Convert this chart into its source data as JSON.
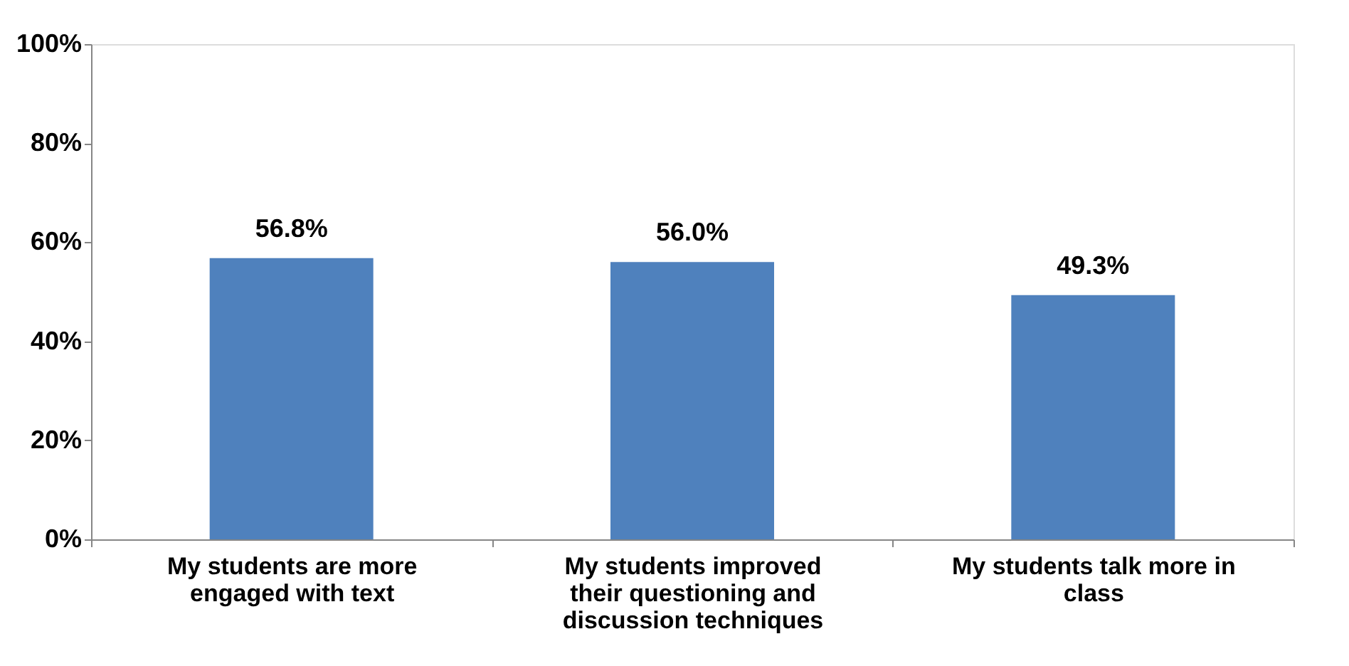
{
  "chart_data": {
    "type": "bar",
    "categories": [
      "My students are more engaged with text",
      "My students improved their questioning and discussion techniques",
      "My students talk more in class"
    ],
    "values": [
      56.8,
      56.0,
      49.3
    ],
    "value_labels": [
      "56.8%",
      "56.0%",
      "49.3%"
    ],
    "color": "#4f81bd",
    "ylim": [
      0,
      100
    ],
    "yticks": [
      {
        "value": 0,
        "label": "0%"
      },
      {
        "value": 20,
        "label": "20%"
      },
      {
        "value": 40,
        "label": "40%"
      },
      {
        "value": 60,
        "label": "60%"
      },
      {
        "value": 80,
        "label": "80%"
      },
      {
        "value": 100,
        "label": "100%"
      }
    ],
    "grid": false
  }
}
